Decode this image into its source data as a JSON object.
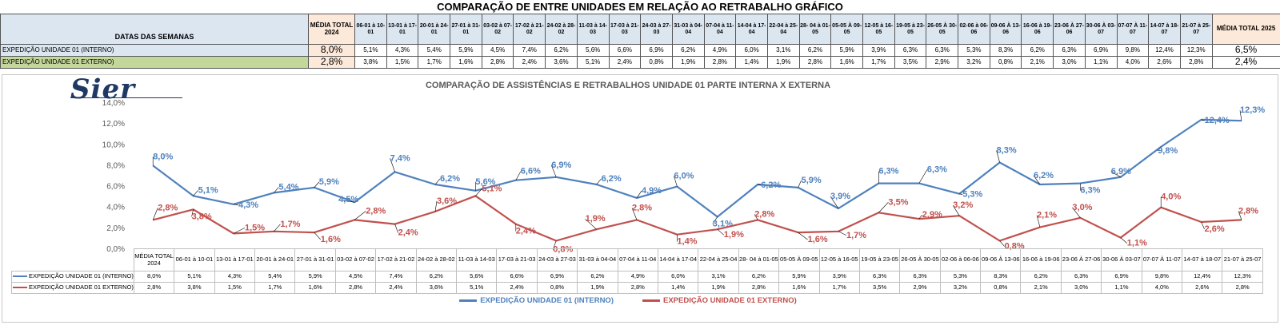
{
  "title": "COMPARAÇÃO DE ENTRE UNIDADES EM RELAÇÃO AO RETRABALHO GRÁFICO",
  "table": {
    "header_label": "DATAS DAS SEMANAS",
    "avg_label": "MÉDIA TOTAL 2024",
    "total_label": "MÉDIA TOTAL 2025",
    "weeks": [
      "06-01 à 10-01",
      "13-01 à 17-01",
      "20-01 à 24-01",
      "27-01 à 31-01",
      "03-02 à 07-02",
      "17-02 à 21-02",
      "24-02 à 28-02",
      "11-03 à 14-03",
      "17-03 à 21-03",
      "24-03 à 27-03",
      "31-03 à 04-04",
      "07-04 à 11-04",
      "14-04 à 17-04",
      "22-04 à 25-04",
      "28- 04 à 01-05",
      "05-05 À 09-05",
      "12-05 à 16-05",
      "19-05 à 23-05",
      "26-05 À 30-05",
      "02-06 à 06-06",
      "09-06 À 13-06",
      "16-06 à 19-06",
      "23-06 À 27-06",
      "30-06 À 03-07",
      "07-07 À 11-07",
      "14-07 à 18-07",
      "21-07 à 25-07"
    ],
    "rows": [
      {
        "label": "EXPEDIÇÃO UNIDADE 01 (INTERNO)",
        "avg": "8,0%",
        "values": [
          "5,1%",
          "4,3%",
          "5,4%",
          "5,9%",
          "4,5%",
          "7,4%",
          "6,2%",
          "5,6%",
          "6,6%",
          "6,9%",
          "6,2%",
          "4,9%",
          "6,0%",
          "3,1%",
          "6,2%",
          "5,9%",
          "3,9%",
          "6,3%",
          "6,3%",
          "5,3%",
          "8,3%",
          "6,2%",
          "6,3%",
          "6,9%",
          "9,8%",
          "12,4%",
          "12,3%"
        ],
        "total": "6,5%"
      },
      {
        "label": "EXPEDIÇÃO UNIDADE 01 EXTERNO)",
        "avg": "2,8%",
        "values": [
          "3,8%",
          "1,5%",
          "1,7%",
          "1,6%",
          "2,8%",
          "2,4%",
          "3,6%",
          "5,1%",
          "2,4%",
          "0,8%",
          "1,9%",
          "2,8%",
          "1,4%",
          "1,9%",
          "2,8%",
          "1,6%",
          "1,7%",
          "3,5%",
          "2,9%",
          "3,2%",
          "0,8%",
          "2,1%",
          "3,0%",
          "1,1%",
          "4,0%",
          "2,6%",
          "2,8%"
        ],
        "total": "2,4%"
      }
    ]
  },
  "logo_text": "Sier",
  "chart_data": {
    "type": "line",
    "title": "COMPARAÇÃO DE ASSISTÊNCIAS E RETRABALHOS UNIDADE 01 PARTE INTERNA X EXTERNA",
    "categories": [
      "MÉDIA TOTAL 2024",
      "06-01 à 10-01",
      "13-01 à 17-01",
      "20-01 à 24-01",
      "27-01 à 31-01",
      "03-02 à 07-02",
      "17-02 à 21-02",
      "24-02 à 28-02",
      "11-03 à 14-03",
      "17-03 à 21-03",
      "24-03 à 27-03",
      "31-03 à 04-04",
      "07-04 à 11-04",
      "14-04 à 17-04",
      "22-04 à 25-04",
      "28- 04 à 01-05",
      "05-05 À 09-05",
      "12-05 à 16-05",
      "19-05 à 23-05",
      "26-05 À 30-05",
      "02-06 à 06-06",
      "09-06 À 13-06",
      "16-06 à 19-06",
      "23-06 À 27-06",
      "30-06 À 03-07",
      "07-07 À 11-07",
      "14-07 à 18-07",
      "21-07 à 25-07"
    ],
    "series": [
      {
        "name": "EXPEDIÇÃO UNIDADE 01 (INTERNO)",
        "color": "#4f81bd",
        "values": [
          8.0,
          5.1,
          4.3,
          5.4,
          5.9,
          4.5,
          7.4,
          6.2,
          5.6,
          6.6,
          6.9,
          6.2,
          4.9,
          6.0,
          3.1,
          6.2,
          5.9,
          3.9,
          6.3,
          6.3,
          5.3,
          8.3,
          6.2,
          6.3,
          6.9,
          9.8,
          12.4,
          12.3
        ],
        "labels": [
          "8,0%",
          "5,1%",
          "4,3%",
          "5,4%",
          "5,9%",
          "4,5%",
          "7,4%",
          "6,2%",
          "5,6%",
          "6,6%",
          "6,9%",
          "6,2%",
          "4,9%",
          "6,0%",
          "3,1%",
          "6,2%",
          "5,9%",
          "3,9%",
          "6,3%",
          "6,3%",
          "5,3%",
          "8,3%",
          "6,2%",
          "6,3%",
          "6,9%",
          "9,8%",
          "12,4%",
          "12,3%"
        ]
      },
      {
        "name": "EXPEDIÇÃO UNIDADE 01 EXTERNO)",
        "color": "#c0504d",
        "values": [
          2.8,
          3.8,
          1.5,
          1.7,
          1.6,
          2.8,
          2.4,
          3.6,
          5.1,
          2.4,
          0.8,
          1.9,
          2.8,
          1.4,
          1.9,
          2.8,
          1.6,
          1.7,
          3.5,
          2.9,
          3.2,
          0.8,
          2.1,
          3.0,
          1.1,
          4.0,
          2.6,
          2.8
        ],
        "labels": [
          "2,8%",
          "3,8%",
          "1,5%",
          "1,7%",
          "1,6%",
          "2,8%",
          "2,4%",
          "3,6%",
          "5,1%",
          "2,4%",
          "0,8%",
          "1,9%",
          "2,8%",
          "1,4%",
          "1,9%",
          "2,8%",
          "1,6%",
          "1,7%",
          "3,5%",
          "2,9%",
          "3,2%",
          "0,8%",
          "2,1%",
          "3,0%",
          "1,1%",
          "4,0%",
          "2,6%",
          "2,8%"
        ]
      }
    ],
    "ylim": [
      0,
      14
    ],
    "yticks": [
      0,
      2,
      4,
      6,
      8,
      10,
      12,
      14
    ],
    "ytick_labels": [
      "0,0%",
      "2,0%",
      "4,0%",
      "6,0%",
      "8,0%",
      "10,0%",
      "12,0%",
      "14,0%"
    ],
    "legend": [
      "EXPEDIÇÃO UNIDADE 01 (INTERNO)",
      "EXPEDIÇÃO UNIDADE 01 EXTERNO)"
    ],
    "legend_position": "bottom",
    "data_table_series": [
      "EXPEDIÇÃO UNIDADE 01 (INTERNO)",
      "EXPEDIÇÃO UNIDADE 01 EXTERNO)"
    ],
    "grid": false
  }
}
